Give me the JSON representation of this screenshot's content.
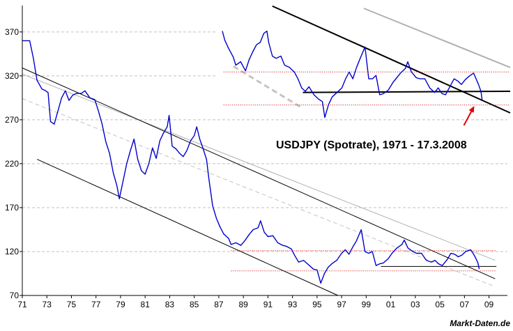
{
  "chart_data": [
    {
      "type": "line",
      "title": "",
      "xlabel": "",
      "ylabel": "",
      "xlim": [
        1971,
        2010.5
      ],
      "ylim": [
        70,
        400
      ],
      "grid": true,
      "grid_style": "dashed-horizontal",
      "x_tick_labels": [
        "71",
        "73",
        "75",
        "77",
        "79",
        "81",
        "83",
        "85",
        "87",
        "89",
        "91",
        "93",
        "95",
        "97",
        "99",
        "01",
        "03",
        "05",
        "07",
        "09"
      ],
      "x_ticks": [
        1971,
        1973,
        1975,
        1977,
        1979,
        1981,
        1983,
        1985,
        1987,
        1989,
        1991,
        1993,
        1995,
        1997,
        1999,
        2001,
        2003,
        2005,
        2007,
        2009
      ],
      "y_ticks": [
        70,
        120,
        170,
        220,
        270,
        320,
        370
      ],
      "series": [
        {
          "color": "#0000cc",
          "points": [
            [
              1971.0,
              360
            ],
            [
              1971.6,
              360
            ],
            [
              1971.9,
              340
            ],
            [
              1972.2,
              315
            ],
            [
              1972.6,
              305
            ],
            [
              1972.9,
              303
            ],
            [
              1973.1,
              301
            ],
            [
              1973.3,
              268
            ],
            [
              1973.6,
              265
            ],
            [
              1973.9,
              280
            ],
            [
              1974.2,
              295
            ],
            [
              1974.5,
              303
            ],
            [
              1974.8,
              292
            ],
            [
              1975.1,
              298
            ],
            [
              1975.4,
              300
            ],
            [
              1975.8,
              300
            ],
            [
              1976.1,
              303
            ],
            [
              1976.5,
              295
            ],
            [
              1976.9,
              293
            ],
            [
              1977.2,
              280
            ],
            [
              1977.5,
              265
            ],
            [
              1977.8,
              245
            ],
            [
              1978.1,
              232
            ],
            [
              1978.4,
              210
            ],
            [
              1978.7,
              195
            ],
            [
              1978.9,
              180
            ],
            [
              1979.2,
              200
            ],
            [
              1979.5,
              220
            ],
            [
              1979.8,
              235
            ],
            [
              1980.1,
              248
            ],
            [
              1980.4,
              225
            ],
            [
              1980.7,
              212
            ],
            [
              1981.0,
              208
            ],
            [
              1981.3,
              220
            ],
            [
              1981.6,
              238
            ],
            [
              1981.9,
              226
            ],
            [
              1982.2,
              246
            ],
            [
              1982.5,
              255
            ],
            [
              1982.8,
              262
            ],
            [
              1982.95,
              275
            ],
            [
              1983.2,
              240
            ],
            [
              1983.5,
              237
            ],
            [
              1983.8,
              232
            ],
            [
              1984.1,
              228
            ],
            [
              1984.4,
              235
            ],
            [
              1984.7,
              246
            ],
            [
              1985.0,
              252
            ],
            [
              1985.2,
              262
            ],
            [
              1985.45,
              248
            ],
            [
              1985.7,
              238
            ],
            [
              1986.0,
              225
            ],
            [
              1986.2,
              202
            ],
            [
              1986.5,
              172
            ],
            [
              1986.8,
              158
            ],
            [
              1987.1,
              148
            ],
            [
              1987.4,
              140
            ],
            [
              1987.8,
              135
            ],
            [
              1988.0,
              128
            ],
            [
              1988.4,
              130
            ],
            [
              1988.8,
              127
            ],
            [
              1989.1,
              132
            ],
            [
              1989.5,
              140
            ],
            [
              1989.8,
              145
            ],
            [
              1990.2,
              147
            ],
            [
              1990.4,
              155
            ],
            [
              1990.7,
              142
            ],
            [
              1991.0,
              137
            ],
            [
              1991.4,
              138
            ],
            [
              1991.8,
              130
            ],
            [
              1992.2,
              127
            ],
            [
              1992.5,
              126
            ],
            [
              1992.9,
              123
            ],
            [
              1993.2,
              115
            ],
            [
              1993.5,
              108
            ],
            [
              1993.9,
              110
            ],
            [
              1994.3,
              105
            ],
            [
              1994.7,
              100
            ],
            [
              1995.0,
              99
            ],
            [
              1995.3,
              84
            ],
            [
              1995.6,
              95
            ],
            [
              1995.9,
              102
            ],
            [
              1996.2,
              106
            ],
            [
              1996.6,
              110
            ],
            [
              1997.0,
              118
            ],
            [
              1997.3,
              122
            ],
            [
              1997.6,
              117
            ],
            [
              1997.9,
              125
            ],
            [
              1998.2,
              132
            ],
            [
              1998.6,
              145
            ],
            [
              1998.9,
              120
            ],
            [
              1999.2,
              118
            ],
            [
              1999.5,
              120
            ],
            [
              1999.8,
              104
            ],
            [
              2000.1,
              106
            ],
            [
              2000.4,
              107
            ],
            [
              2000.8,
              112
            ],
            [
              2001.1,
              118
            ],
            [
              2001.5,
              124
            ],
            [
              2001.9,
              128
            ],
            [
              2002.1,
              133
            ],
            [
              2002.4,
              124
            ],
            [
              2002.8,
              120
            ],
            [
              2003.1,
              118
            ],
            [
              2003.5,
              118
            ],
            [
              2003.9,
              110
            ],
            [
              2004.3,
              108
            ],
            [
              2004.6,
              110
            ],
            [
              2004.9,
              106
            ],
            [
              2005.2,
              104
            ],
            [
              2005.6,
              111
            ],
            [
              2005.9,
              118
            ],
            [
              2006.2,
              117
            ],
            [
              2006.5,
              114
            ],
            [
              2006.8,
              116
            ],
            [
              2007.1,
              120
            ],
            [
              2007.5,
              122
            ],
            [
              2007.7,
              118
            ],
            [
              2007.9,
              113
            ],
            [
              2008.1,
              107
            ],
            [
              2008.2,
              100
            ]
          ]
        }
      ]
    },
    {
      "type": "line",
      "title": "USDJPY (Spotrate), 1971 - 17.3.2008",
      "xlabel": "",
      "ylabel": "",
      "xlim": [
        1986.5,
        2010.5
      ],
      "ylim": [
        88,
        180
      ],
      "grid": false,
      "series": [
        {
          "color": "#0000cc",
          "points": [
            [
              1986.9,
              160
            ],
            [
              1987.1,
              152
            ],
            [
              1987.4,
              145
            ],
            [
              1987.8,
              137
            ],
            [
              1988.0,
              130
            ],
            [
              1988.4,
              133
            ],
            [
              1988.8,
              125
            ],
            [
              1989.1,
              135
            ],
            [
              1989.4,
              142
            ],
            [
              1989.7,
              148
            ],
            [
              1990.0,
              150
            ],
            [
              1990.3,
              158
            ],
            [
              1990.55,
              160
            ],
            [
              1990.7,
              150
            ],
            [
              1991.0,
              138
            ],
            [
              1991.3,
              136
            ],
            [
              1991.7,
              138
            ],
            [
              1992.0,
              130
            ],
            [
              1992.4,
              128
            ],
            [
              1992.8,
              124
            ],
            [
              1993.1,
              118
            ],
            [
              1993.4,
              110
            ],
            [
              1993.7,
              107
            ],
            [
              1994.0,
              111
            ],
            [
              1994.4,
              104
            ],
            [
              1994.8,
              100
            ],
            [
              1995.1,
              98
            ],
            [
              1995.3,
              84
            ],
            [
              1995.6,
              95
            ],
            [
              1995.9,
              102
            ],
            [
              1996.3,
              106
            ],
            [
              1996.7,
              110
            ],
            [
              1997.0,
              118
            ],
            [
              1997.3,
              124
            ],
            [
              1997.6,
              118
            ],
            [
              1997.9,
              128
            ],
            [
              1998.2,
              136
            ],
            [
              1998.6,
              146
            ],
            [
              1998.9,
              118
            ],
            [
              1999.2,
              118
            ],
            [
              1999.5,
              121
            ],
            [
              1999.8,
              104
            ],
            [
              2000.1,
              105
            ],
            [
              2000.5,
              108
            ],
            [
              2000.9,
              115
            ],
            [
              2001.2,
              119
            ],
            [
              2001.5,
              123
            ],
            [
              2001.9,
              127
            ],
            [
              2002.1,
              133
            ],
            [
              2002.4,
              124
            ],
            [
              2002.8,
              119
            ],
            [
              2003.1,
              118
            ],
            [
              2003.5,
              118
            ],
            [
              2003.9,
              110
            ],
            [
              2004.3,
              106
            ],
            [
              2004.6,
              110
            ],
            [
              2004.9,
              105
            ],
            [
              2005.2,
              104
            ],
            [
              2005.6,
              112
            ],
            [
              2005.9,
              118
            ],
            [
              2006.2,
              116
            ],
            [
              2006.5,
              113
            ],
            [
              2006.8,
              117
            ],
            [
              2007.1,
              120
            ],
            [
              2007.5,
              123
            ],
            [
              2007.7,
              118
            ],
            [
              2007.9,
              113
            ],
            [
              2008.1,
              107
            ],
            [
              2008.2,
              99
            ]
          ]
        }
      ],
      "annotation": "arrow"
    }
  ],
  "footer": {
    "credit": "Markt-Daten.de"
  },
  "colors": {
    "price_line": "#0000cc",
    "channel_line": "#000000",
    "channel_light": "#b0b0b0",
    "channel_dashed": "#c4c4c4",
    "support_dotted": "#cc0000",
    "arrow": "#e00000",
    "grid": "#c0c0c0",
    "inset_bg": "#ffffff"
  }
}
